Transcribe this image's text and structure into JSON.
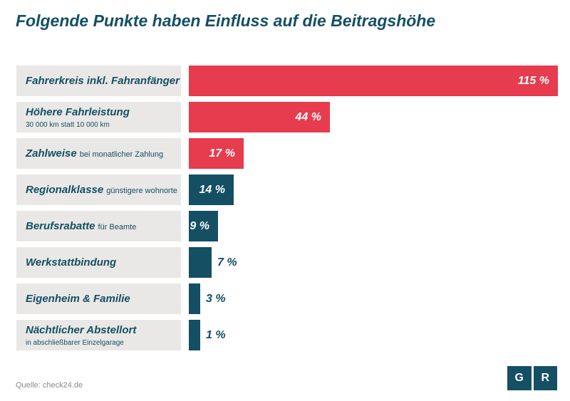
{
  "title": "Folgende Punkte haben Einfluss auf die Beitragshöhe",
  "source": "Quelle: check24.de",
  "logo": {
    "left": "G",
    "right": "R"
  },
  "colors": {
    "highlight": "#e63c4e",
    "standard": "#144f63",
    "label_bg": "#e9e8e6"
  },
  "chart_data": {
    "type": "bar",
    "orientation": "horizontal",
    "title": "Folgende Punkte haben Einfluss auf die Beitragshöhe",
    "unit": "%",
    "xlim": [
      0,
      115
    ],
    "categories": [
      "Fahrerkreis inkl. Fahranfänger",
      "Höhere Fahrleistung",
      "Zahlweise",
      "Regionalklasse",
      "Berufsrabatte",
      "Werkstattbindung",
      "Eigenheim & Familie",
      "Nächtlicher Abstellort"
    ],
    "subtitles": [
      "",
      "30 000 km statt 10 000 km",
      "bei monatlicher Zahlung",
      "günstigere wohnorte",
      "für Beamte",
      "",
      "",
      "in abschließbarer Einzelgarage"
    ],
    "subtitle_position": [
      "none",
      "below",
      "inline",
      "inline",
      "inline",
      "none",
      "none",
      "below"
    ],
    "values": [
      115,
      44,
      17,
      14,
      9,
      7,
      3,
      1
    ],
    "value_labels": [
      "115 %",
      "44 %",
      "17 %",
      "14 %",
      "9 %",
      "7 %",
      "3 %",
      "1 %"
    ],
    "highlighted": [
      true,
      true,
      true,
      false,
      false,
      false,
      false,
      false
    ]
  }
}
